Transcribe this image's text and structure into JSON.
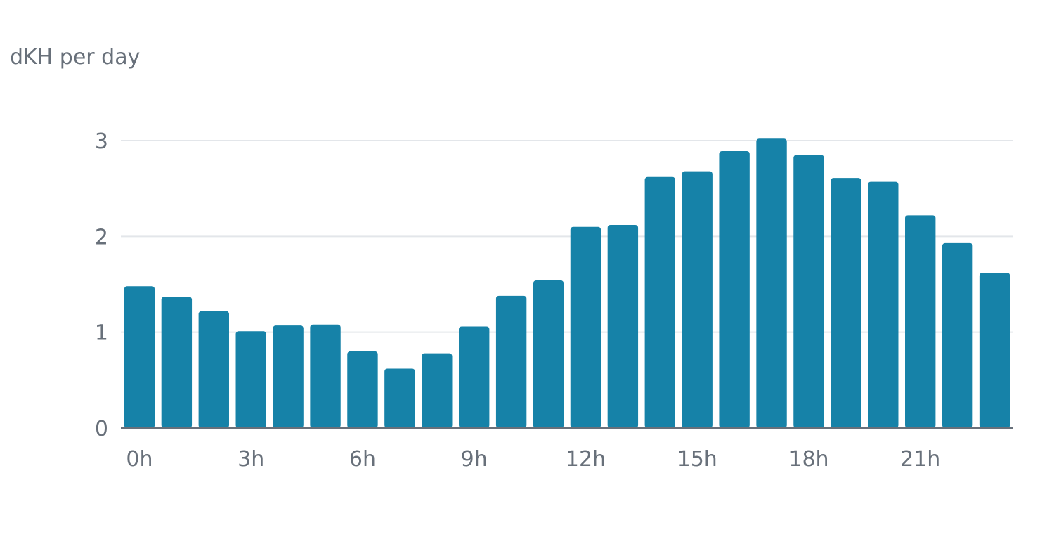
{
  "chart_data": {
    "type": "bar",
    "ylabel": "dKH per day",
    "xlabel": "",
    "title": "",
    "categories": [
      "0h",
      "1h",
      "2h",
      "3h",
      "4h",
      "5h",
      "6h",
      "7h",
      "8h",
      "9h",
      "10h",
      "11h",
      "12h",
      "13h",
      "14h",
      "15h",
      "16h",
      "17h",
      "18h",
      "19h",
      "20h",
      "21h",
      "22h",
      "23h"
    ],
    "x_tick_labels": [
      "0h",
      "3h",
      "6h",
      "9h",
      "12h",
      "15h",
      "18h",
      "21h"
    ],
    "values": [
      1.48,
      1.37,
      1.22,
      1.01,
      1.07,
      1.08,
      0.8,
      0.62,
      0.78,
      1.06,
      1.38,
      1.54,
      2.1,
      2.12,
      2.62,
      2.68,
      2.89,
      3.02,
      2.85,
      2.61,
      2.57,
      2.22,
      1.93,
      1.62
    ],
    "ylim": [
      0,
      3.3
    ],
    "y_ticks": [
      0,
      1,
      2,
      3
    ],
    "grid": true,
    "colors": {
      "bar": "#1682a8",
      "grid": "#e3e6ea",
      "axis": "#68707a",
      "text": "#68707a"
    }
  }
}
